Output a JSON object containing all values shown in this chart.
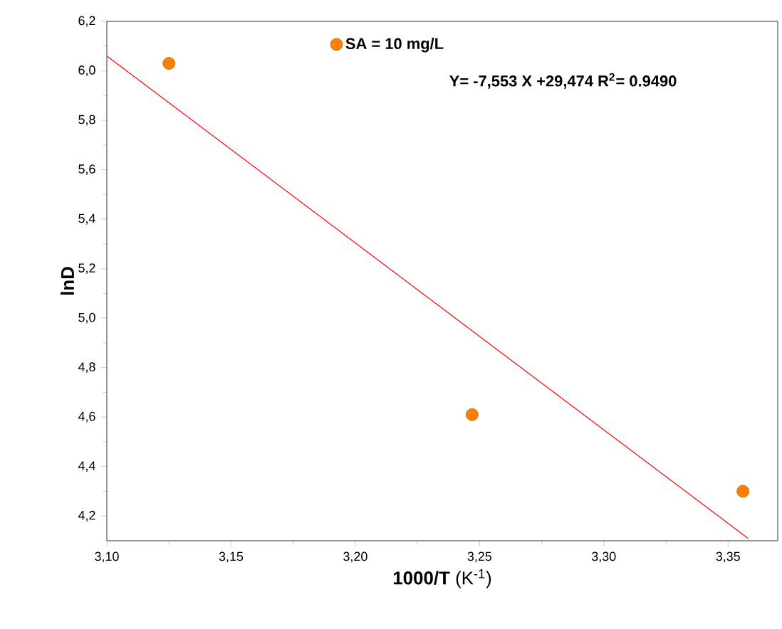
{
  "chart_data": {
    "type": "scatter",
    "xlabel": "**1000/T** (K$^{-1}$)",
    "ylabel": "lnD",
    "xlim": [
      3.1,
      3.37
    ],
    "ylim": [
      4.1,
      6.2
    ],
    "xticks": [
      {
        "value": 3.1,
        "label": "3,10"
      },
      {
        "value": 3.15,
        "label": "3,15"
      },
      {
        "value": 3.2,
        "label": "3,20"
      },
      {
        "value": 3.25,
        "label": "3,25"
      },
      {
        "value": 3.3,
        "label": "3,30"
      },
      {
        "value": 3.35,
        "label": "3,35"
      }
    ],
    "yticks": [
      {
        "value": 4.2,
        "label": "4,2"
      },
      {
        "value": 4.4,
        "label": "4,4"
      },
      {
        "value": 4.6,
        "label": "4,6"
      },
      {
        "value": 4.8,
        "label": "4,8"
      },
      {
        "value": 5.0,
        "label": "5,0"
      },
      {
        "value": 5.2,
        "label": "5,2"
      },
      {
        "value": 5.4,
        "label": "5,4"
      },
      {
        "value": 5.6,
        "label": "5,6"
      },
      {
        "value": 5.8,
        "label": "5,8"
      },
      {
        "value": 6.0,
        "label": "6,0"
      },
      {
        "value": 6.2,
        "label": "6,2"
      }
    ],
    "series": [
      {
        "name": "SA = 10 mg/L",
        "color": "#ff8000",
        "marker": "circle",
        "x": [
          3.125,
          3.247,
          3.356
        ],
        "values": [
          6.03,
          4.61,
          4.3
        ]
      },
      {
        "type": "line",
        "marker": "none",
        "color": "#ff0000",
        "x": [
          3.1,
          3.358
        ],
        "values": [
          6.06,
          4.11
        ]
      }
    ],
    "legend": "top",
    "grid": false,
    "annotations": [
      "Y= -7,553 X +29,474  R$^{2}$= 0.9490"
    ]
  }
}
